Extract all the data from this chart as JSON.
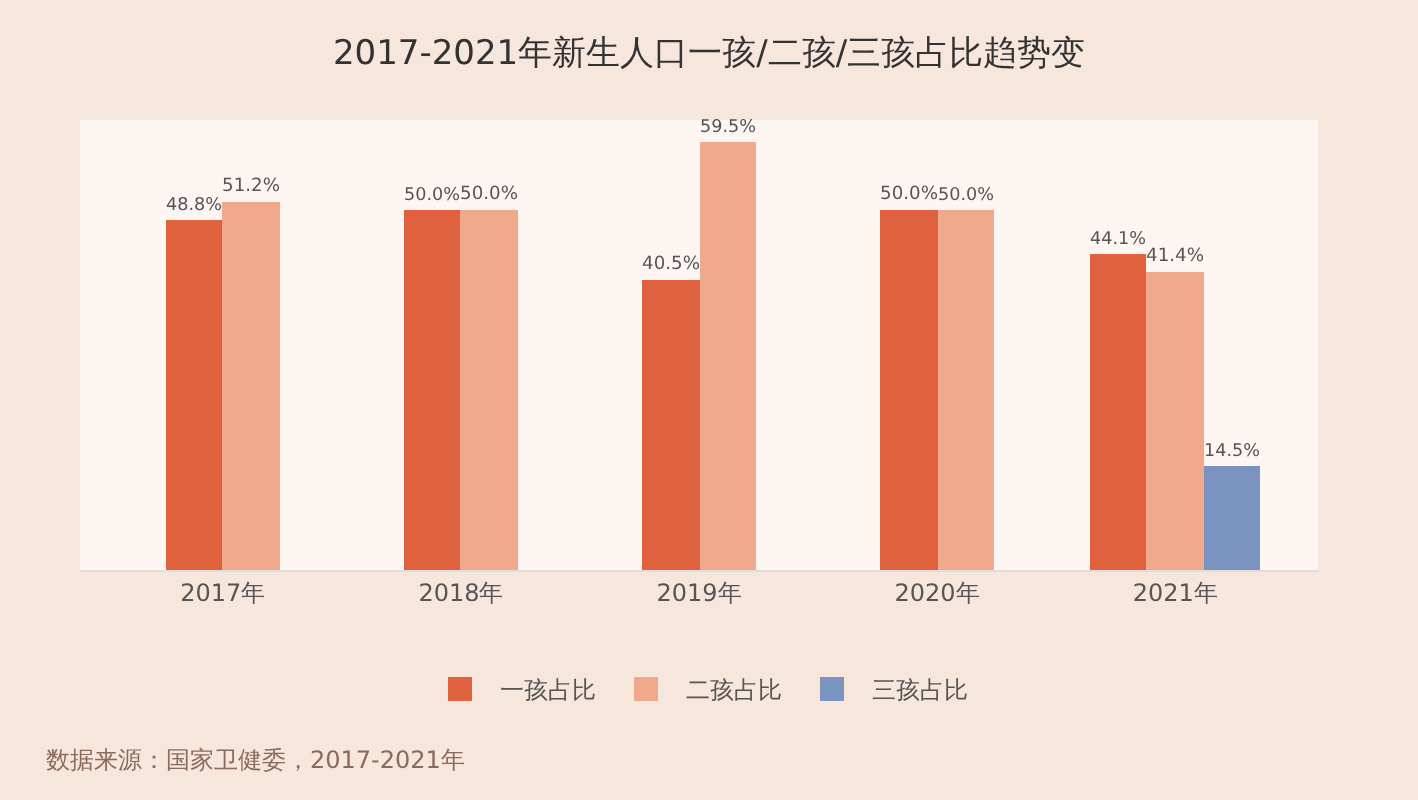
{
  "chart_data": {
    "type": "bar",
    "title": "2017-2021年新生人口一孩/二孩/三孩占比趋势变",
    "categories": [
      "2017年",
      "2018年",
      "2019年",
      "2020年",
      "2021年"
    ],
    "series": [
      {
        "name": "一孩占比",
        "color": "#e0613d",
        "values": [
          48.8,
          50.0,
          40.5,
          50.0,
          44.1
        ],
        "value_labels": [
          "48.8%",
          "50.0%",
          "40.5%",
          "50.0%",
          "44.1%"
        ]
      },
      {
        "name": "二孩占比",
        "color": "#f0aa8b",
        "values": [
          51.2,
          50.0,
          59.5,
          50.0,
          41.4
        ],
        "value_labels": [
          "51.2%",
          "50.0%",
          "59.5%",
          "50.0%",
          "41.4%"
        ]
      },
      {
        "name": "三孩占比",
        "color": "#7b93c0",
        "values": [
          null,
          null,
          null,
          null,
          14.5
        ],
        "value_labels": [
          null,
          null,
          null,
          null,
          "14.5%"
        ]
      }
    ],
    "grid": false,
    "legend": "bottom",
    "annotations": [
      "数据来源：国家卫健委，2017-2021年"
    ]
  }
}
